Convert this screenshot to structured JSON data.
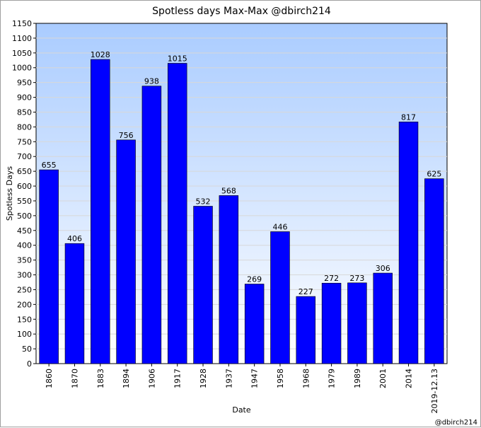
{
  "chart_data": {
    "type": "bar",
    "title": "Spotless days Max-Max  @dbirch214",
    "xlabel": "Date",
    "ylabel": "Spotless Days",
    "ylim": [
      0,
      1150
    ],
    "ytick_step": 50,
    "grid": true,
    "categories": [
      "1860",
      "1870",
      "1883",
      "1894",
      "1906",
      "1917",
      "1928",
      "1937",
      "1947",
      "1958",
      "1968",
      "1979",
      "1989",
      "2001",
      "2014",
      "2019-12.13"
    ],
    "values": [
      655,
      406,
      1028,
      756,
      938,
      1015,
      532,
      568,
      269,
      446,
      227,
      272,
      273,
      306,
      817,
      625
    ],
    "bar_color": "#0000ff",
    "background_gradient": [
      "#aaccff",
      "#ffffff"
    ],
    "credit": "@dbirch214"
  }
}
